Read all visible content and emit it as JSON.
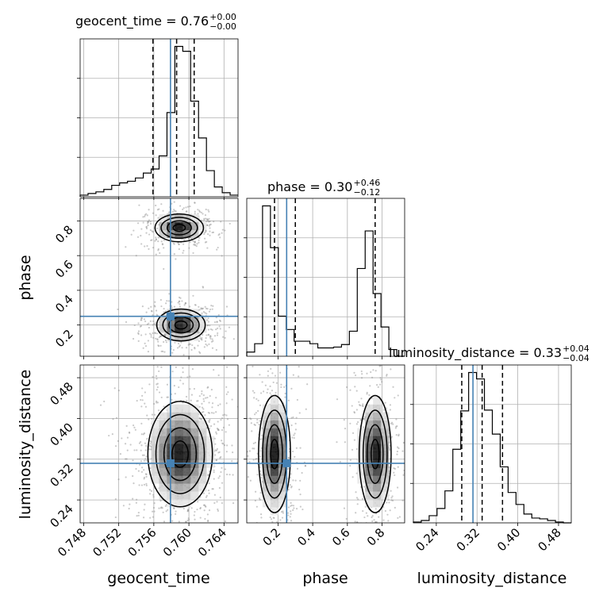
{
  "chart_data": {
    "type": "corner",
    "parameters": [
      "geocent_time",
      "phase",
      "luminosity_distance"
    ],
    "truth": {
      "geocent_time": 0.7579,
      "phase": 0.25,
      "luminosity_distance": 0.312
    },
    "truth_color": "#4682b4",
    "line_color": "#000000",
    "grid": true,
    "titles": [
      {
        "param": "geocent_time",
        "text": "geocent_time = 0.76",
        "sup": "+0.00",
        "sub": "−0.00"
      },
      {
        "param": "phase",
        "text": "phase = 0.30",
        "sup": "+0.46",
        "sub": "−0.12"
      },
      {
        "param": "luminosity_distance",
        "text": "luminosity_distance = 0.33",
        "sup": "+0.04",
        "sub": "−0.04"
      }
    ],
    "axis_labels": {
      "x": [
        "geocent_time",
        "phase",
        "luminosity_distance"
      ],
      "y": [
        "phase",
        "luminosity_distance"
      ]
    },
    "axes": {
      "geocent_time": {
        "range": [
          0.7476,
          0.7656
        ],
        "ticks": [
          "0.748",
          "0.752",
          "0.756",
          "0.760",
          "0.764"
        ]
      },
      "phase": {
        "range": [
          0.02,
          0.93
        ],
        "ticks": [
          "0.2",
          "0.4",
          "0.6",
          "0.8"
        ]
      },
      "luminosity_distance": {
        "range": [
          0.195,
          0.505
        ],
        "ticks": [
          "0.24",
          "0.32",
          "0.40",
          "0.48"
        ]
      }
    },
    "histograms": [
      {
        "param": "geocent_time",
        "edges": [
          0.7476,
          0.7485,
          0.7494,
          0.7503,
          0.7512,
          0.7521,
          0.753,
          0.7539,
          0.7548,
          0.7557,
          0.7566,
          0.7575,
          0.7584,
          0.7593,
          0.7602,
          0.7611,
          0.762,
          0.7629,
          0.7638,
          0.7647,
          0.7656
        ],
        "counts": [
          2,
          4,
          6,
          9,
          14,
          17,
          19,
          23,
          29,
          34,
          50,
          103,
          184,
          178,
          117,
          72,
          32,
          12,
          5,
          2
        ],
        "quantiles": [
          0.7559,
          0.7586,
          0.7606
        ]
      },
      {
        "param": "phase",
        "edges": [
          0.02,
          0.0655,
          0.111,
          0.1565,
          0.202,
          0.2475,
          0.293,
          0.3385,
          0.384,
          0.4295,
          0.475,
          0.5205,
          0.566,
          0.6115,
          0.657,
          0.7025,
          0.748,
          0.7935,
          0.839,
          0.8845,
          0.93
        ],
        "counts": [
          5,
          15,
          180,
          130,
          48,
          32,
          18,
          18,
          15,
          10,
          10,
          11,
          14,
          30,
          105,
          150,
          75,
          35,
          8,
          0
        ],
        "quantiles": [
          0.18,
          0.3,
          0.76
        ]
      },
      {
        "param": "luminosity_distance",
        "edges": [
          0.195,
          0.2105,
          0.226,
          0.2415,
          0.257,
          0.2725,
          0.288,
          0.3035,
          0.319,
          0.3345,
          0.35,
          0.3655,
          0.381,
          0.3965,
          0.412,
          0.4275,
          0.443,
          0.4585,
          0.474,
          0.4895,
          0.505
        ],
        "counts": [
          1,
          3,
          9,
          18,
          40,
          92,
          140,
          188,
          180,
          141,
          111,
          70,
          38,
          23,
          11,
          6,
          5,
          3,
          1,
          0
        ],
        "quantiles": [
          0.29,
          0.33,
          0.37
        ]
      }
    ],
    "density_panels": [
      {
        "x": "geocent_time",
        "y": "phase",
        "modes": [
          {
            "x": 0.7589,
            "y": 0.76,
            "sx": 0.0012,
            "sy": 0.035
          },
          {
            "x": 0.7591,
            "y": 0.2,
            "sx": 0.0012,
            "sy": 0.04
          }
        ]
      },
      {
        "x": "geocent_time",
        "y": "luminosity_distance",
        "modes": [
          {
            "x": 0.759,
            "y": 0.33,
            "sx": 0.0016,
            "sy": 0.045
          }
        ]
      },
      {
        "x": "phase",
        "y": "luminosity_distance",
        "modes": [
          {
            "x": 0.18,
            "y": 0.33,
            "sx": 0.04,
            "sy": 0.05
          },
          {
            "x": 0.76,
            "y": 0.33,
            "sx": 0.04,
            "sy": 0.05
          }
        ]
      }
    ]
  }
}
